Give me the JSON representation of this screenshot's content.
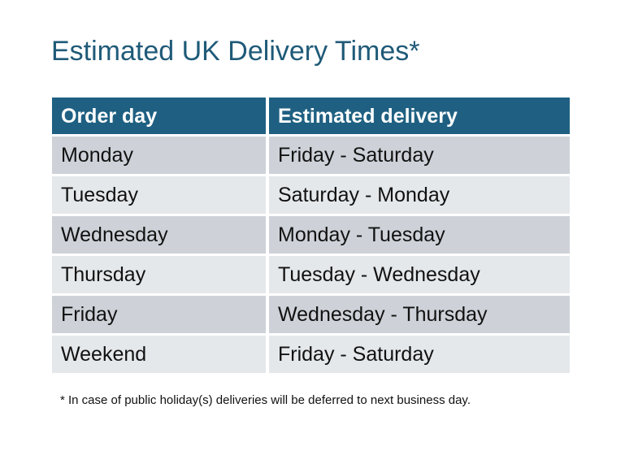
{
  "title": "Estimated UK Delivery Times*",
  "table": {
    "headers": [
      "Order day",
      "Estimated delivery"
    ],
    "rows": [
      [
        "Monday",
        "Friday - Saturday"
      ],
      [
        "Tuesday",
        "Saturday - Monday"
      ],
      [
        "Wednesday",
        "Monday - Tuesday"
      ],
      [
        "Thursday",
        "Tuesday - Wednesday"
      ],
      [
        "Friday",
        "Wednesday - Thursday"
      ],
      [
        "Weekend",
        "Friday - Saturday"
      ]
    ]
  },
  "footnote": "* In case of public holiday(s) deliveries will be deferred to next business day.",
  "colors": {
    "title": "#1f5a78",
    "header": "#1f6082",
    "row_dark": "#ced2d8",
    "row_light": "#e5e8eb"
  }
}
